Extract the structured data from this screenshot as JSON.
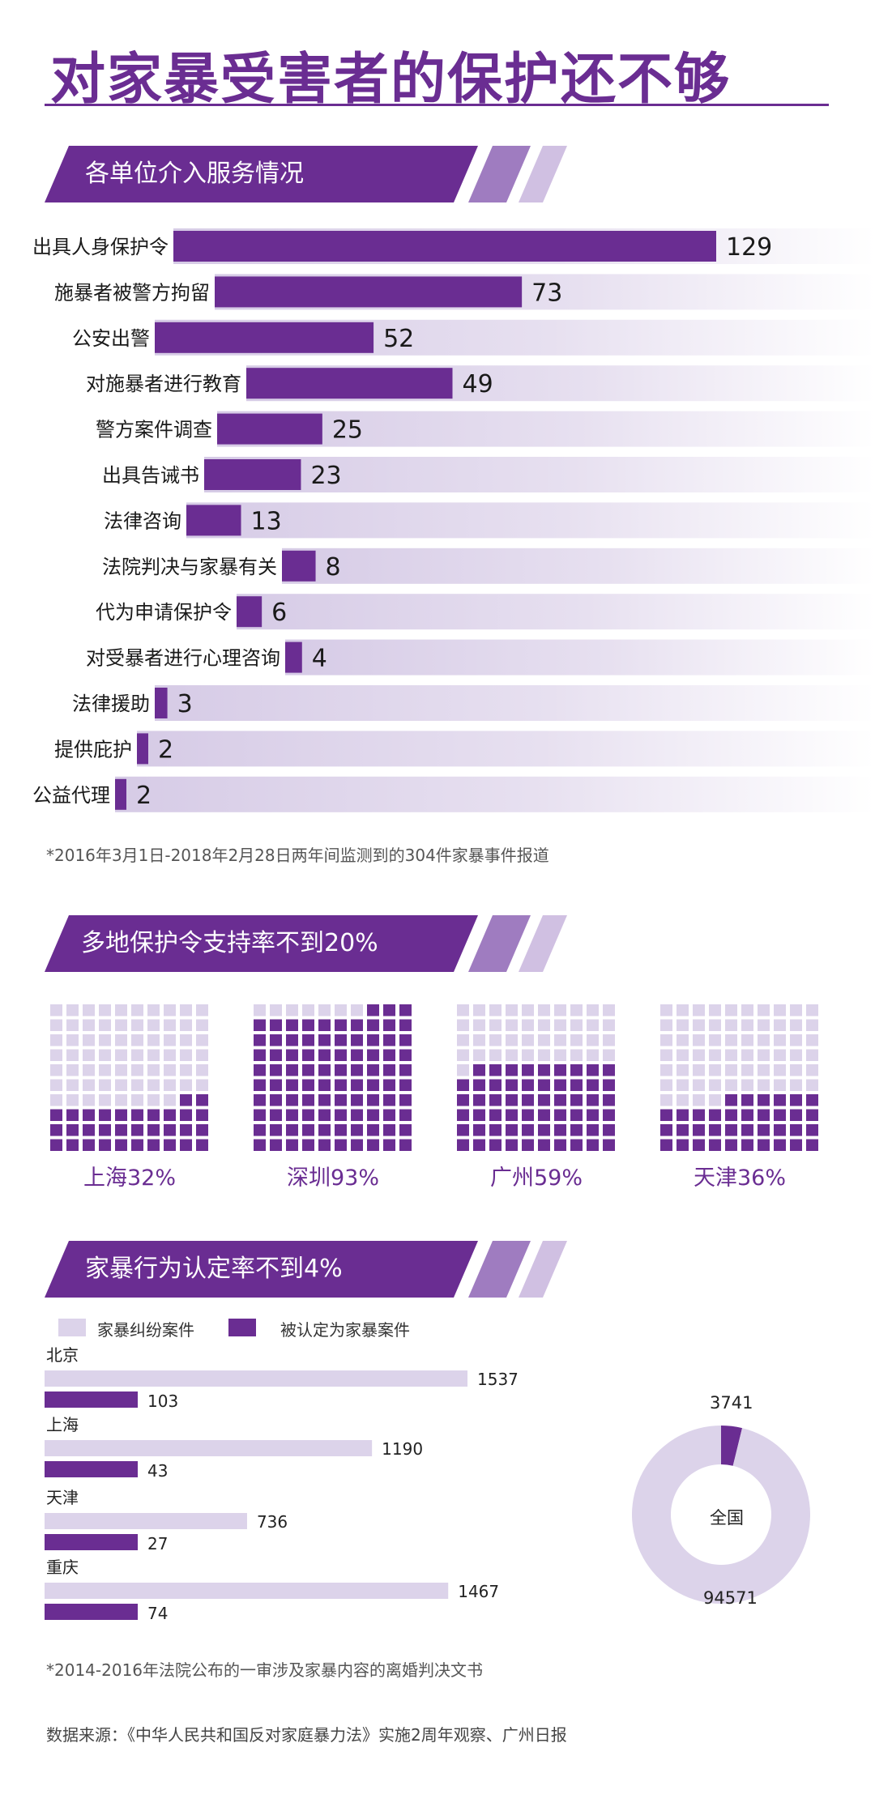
{
  "title": "对家暴受害者的保护还不够",
  "colors": {
    "primary": "#6a2d92",
    "light": "#dcd3ea",
    "bg_fade": "#ede8f4"
  },
  "section1": {
    "heading": "各单位介入服务情况",
    "footnote": "*2016年3月1日-2018年2月28日两年间监测到的304件家暴事件报道"
  },
  "section2": {
    "heading": "多地保护令支持率不到20%"
  },
  "section3": {
    "heading": "家暴行为认定率不到4%",
    "footnote": "*2014-2016年法院公布的一审涉及家暴内容的离婚判决文书"
  },
  "source": "数据来源：《中华人民共和国反对家庭暴力法》实施2周年观察、广州日报",
  "chart_data": [
    {
      "type": "bar",
      "orientation": "horizontal",
      "categories": [
        "出具人身保护令",
        "施暴者被警方拘留",
        "公安出警",
        "对施暴者进行教育",
        "警方案件调查",
        "出具告诫书",
        "法律咨询",
        "法院判决与家暴有关",
        "代为申请保护令",
        "对受暴者进行心理咨询",
        "法律援助",
        "提供庇护",
        "公益代理"
      ],
      "values": [
        129,
        73,
        52,
        49,
        25,
        23,
        13,
        8,
        6,
        4,
        3,
        2,
        2
      ]
    },
    {
      "type": "waffle",
      "categories": [
        "上海32%",
        "深圳93%",
        "广州59%",
        "天津36%"
      ],
      "values": [
        32,
        93,
        59,
        36
      ]
    },
    {
      "type": "bar",
      "orientation": "horizontal",
      "categories": [
        "北京",
        "上海",
        "天津",
        "重庆"
      ],
      "series": [
        {
          "name": "家暴纠纷案件",
          "values": [
            1537,
            1190,
            736,
            1467
          ]
        },
        {
          "name": "被认定为家暴案件",
          "values": [
            103,
            43,
            27,
            74
          ]
        }
      ],
      "xlim": [
        0,
        1537
      ]
    },
    {
      "type": "pie",
      "center_label": "全国",
      "slices": [
        {
          "name": "被认定为家暴案件",
          "value": 3741
        },
        {
          "name": "家暴纠纷案件",
          "value": 94571
        }
      ]
    }
  ]
}
